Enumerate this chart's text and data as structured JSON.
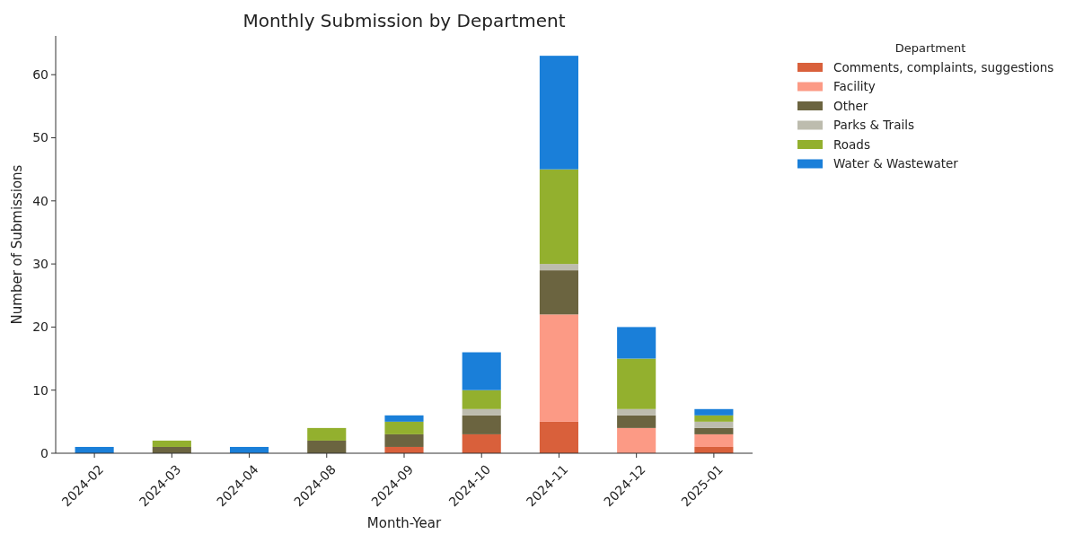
{
  "chart_data": {
    "type": "bar",
    "title": "Monthly Submission by Department",
    "xlabel": "Month-Year",
    "ylabel": "Number of Submissions",
    "legend_title": "Department",
    "legend": "top right",
    "stacked": true,
    "categories": [
      "2024-02",
      "2024-03",
      "2024-04",
      "2024-08",
      "2024-09",
      "2024-10",
      "2024-11",
      "2024-12",
      "2025-01"
    ],
    "series": [
      {
        "name": "Comments, complaints, suggestions",
        "color": "#d9603b",
        "values": [
          0,
          0,
          0,
          0,
          1,
          3,
          5,
          0,
          1
        ]
      },
      {
        "name": "Facility",
        "color": "#fc9a85",
        "values": [
          0,
          0,
          0,
          0,
          0,
          0,
          17,
          4,
          2
        ]
      },
      {
        "name": "Other",
        "color": "#6b6440",
        "values": [
          0,
          1,
          0,
          2,
          2,
          3,
          7,
          2,
          1
        ]
      },
      {
        "name": "Parks & Trails",
        "color": "#bdbcae",
        "values": [
          0,
          0,
          0,
          0,
          0,
          1,
          1,
          1,
          1
        ]
      },
      {
        "name": "Roads",
        "color": "#93b02e",
        "values": [
          0,
          1,
          0,
          2,
          2,
          3,
          15,
          8,
          1
        ]
      },
      {
        "name": "Water & Wastewater",
        "color": "#1a7fd9",
        "values": [
          1,
          0,
          1,
          0,
          1,
          6,
          18,
          5,
          1
        ]
      }
    ],
    "ylim": [
      0,
      66.15
    ],
    "yticks": [
      0,
      10,
      20,
      30,
      40,
      50,
      60
    ],
    "grid": false
  }
}
